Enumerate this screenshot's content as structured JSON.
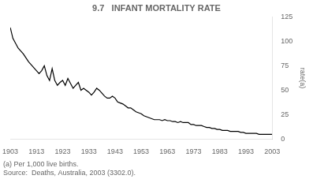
{
  "chart_data": {
    "type": "line",
    "title": "9.7   INFANT MORTALITY RATE",
    "ylabel": "rate(a)",
    "annotations": [
      "(a) Per 1,000 live births.",
      "Source:  Deaths, Australia, 2003 (3302.0)."
    ],
    "x": [
      1903,
      1904,
      1905,
      1906,
      1907,
      1908,
      1909,
      1910,
      1911,
      1912,
      1913,
      1914,
      1915,
      1916,
      1917,
      1918,
      1919,
      1920,
      1921,
      1922,
      1923,
      1924,
      1925,
      1926,
      1927,
      1928,
      1929,
      1930,
      1931,
      1932,
      1933,
      1934,
      1935,
      1936,
      1937,
      1938,
      1939,
      1940,
      1941,
      1942,
      1943,
      1944,
      1945,
      1946,
      1947,
      1948,
      1949,
      1950,
      1951,
      1952,
      1953,
      1954,
      1955,
      1956,
      1957,
      1958,
      1959,
      1960,
      1961,
      1962,
      1963,
      1964,
      1965,
      1966,
      1967,
      1968,
      1969,
      1970,
      1971,
      1972,
      1973,
      1974,
      1975,
      1976,
      1977,
      1978,
      1979,
      1980,
      1981,
      1982,
      1983,
      1984,
      1985,
      1986,
      1987,
      1988,
      1989,
      1990,
      1991,
      1992,
      1993,
      1994,
      1995,
      1996,
      1997,
      1998,
      1999,
      2000,
      2001,
      2002,
      2003
    ],
    "values": [
      114,
      103,
      98,
      93,
      90,
      87,
      83,
      79,
      76,
      73,
      70,
      67,
      70,
      75,
      65,
      60,
      72,
      60,
      55,
      58,
      60,
      55,
      62,
      57,
      52,
      55,
      58,
      50,
      52,
      50,
      48,
      45,
      48,
      52,
      50,
      47,
      44,
      42,
      42,
      44,
      42,
      38,
      37,
      36,
      34,
      32,
      32,
      30,
      28,
      27,
      26,
      24,
      23,
      22,
      21,
      20,
      20,
      20,
      19,
      20,
      19,
      19,
      18,
      18,
      17,
      18,
      17,
      17,
      17,
      15,
      15,
      14,
      14,
      14,
      13,
      12,
      12,
      11,
      11,
      10,
      10,
      9,
      9,
      9,
      8,
      8,
      8,
      8,
      7,
      7,
      6,
      6,
      6,
      6,
      6,
      5,
      5,
      5,
      5,
      5,
      5
    ],
    "color": "#000000",
    "xlim": [
      1903,
      2003
    ],
    "xticks": [
      1903,
      1913,
      1923,
      1933,
      1943,
      1953,
      1963,
      1973,
      1983,
      1993,
      2003
    ],
    "ylim": [
      0,
      125
    ],
    "yticks": [
      0,
      25,
      50,
      75,
      100,
      125
    ],
    "grid": false
  }
}
